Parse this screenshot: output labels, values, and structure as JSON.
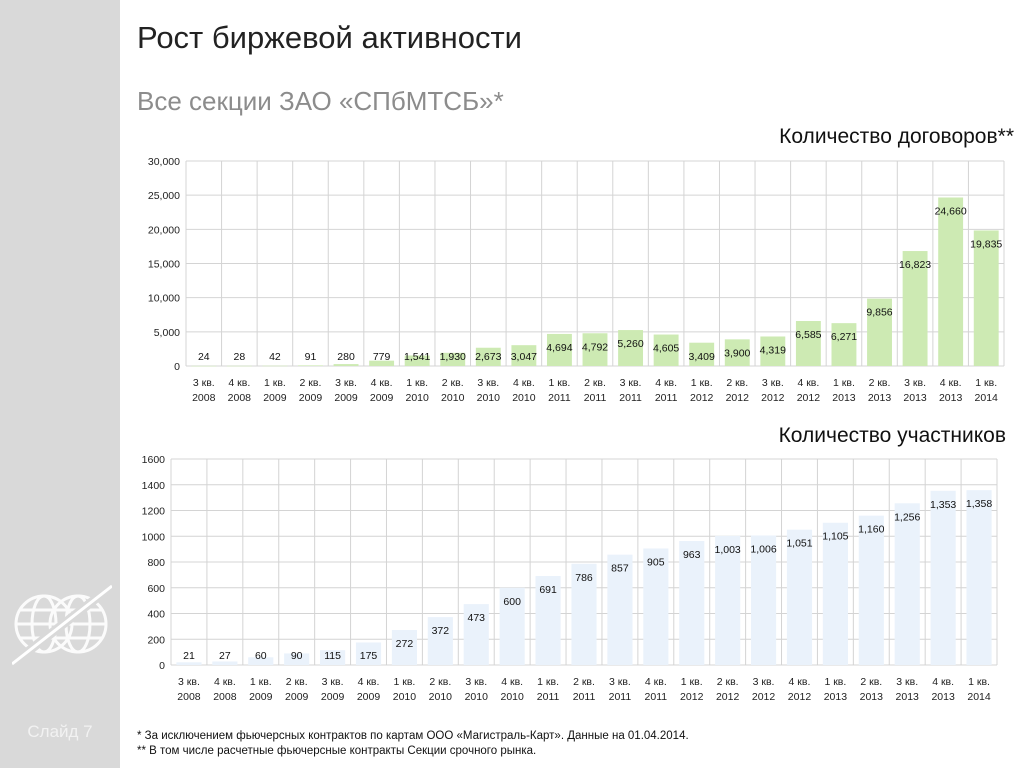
{
  "slide": {
    "title": "Рост биржевой активности",
    "subtitle": "Все секции ЗАО «СПбМТСБ»*",
    "slide_label": "Слайд 7"
  },
  "footnotes": {
    "note1": "* За исключением фьючерсных контрактов по картам ООО «Магистраль-Карт».  Данные на 01.04.2014.",
    "note2": "** В том числе расчетные фьючерсные контракты Секции срочного рынка."
  },
  "colors": {
    "contracts_bar": "#cdeab3",
    "participants_bar": "#eaf2fb",
    "grid": "#d4d4d4",
    "sidebar": "#d9d9d9"
  },
  "chart_data": [
    {
      "type": "bar",
      "title": "Количество договоров**",
      "categories": [
        "3 кв. 2008",
        "4 кв. 2008",
        "1 кв. 2009",
        "2 кв. 2009",
        "3 кв. 2009",
        "4 кв. 2009",
        "1 кв. 2010",
        "2 кв. 2010",
        "3 кв. 2010",
        "4 кв. 2010",
        "1 кв. 2011",
        "2 кв. 2011",
        "3 кв. 2011",
        "4 кв. 2011",
        "1 кв. 2012",
        "2 кв. 2012",
        "3 кв. 2012",
        "4 кв. 2012",
        "1 кв. 2013",
        "2 кв. 2013",
        "3 кв. 2013",
        "4 кв. 2013",
        "1 кв. 2014"
      ],
      "values": [
        24,
        28,
        42,
        91,
        280,
        779,
        1541,
        1930,
        2673,
        3047,
        4694,
        4792,
        5260,
        4605,
        3409,
        3900,
        4319,
        6585,
        6271,
        9856,
        16823,
        24660,
        19835
      ],
      "data_labels": [
        "24",
        "28",
        "42",
        "91",
        "280",
        "779",
        "1,541",
        "1,930",
        "2,673",
        "3,047",
        "4,694",
        "4,792",
        "5,260",
        "4,605",
        "3,409",
        "3,900",
        "4,319",
        "6,585",
        "6,271",
        "9,856",
        "16,823",
        "24,660",
        "19,835"
      ],
      "y_ticks": [
        "0",
        "5,000",
        "10,000",
        "15,000",
        "20,000",
        "25,000",
        "30,000"
      ],
      "ylim": [
        0,
        30000
      ],
      "xlabel": "",
      "ylabel": "",
      "grid": true,
      "legend": "none"
    },
    {
      "type": "bar",
      "title": "Количество участников",
      "categories": [
        "3 кв. 2008",
        "4 кв. 2008",
        "1 кв. 2009",
        "2 кв. 2009",
        "3 кв. 2009",
        "4 кв. 2009",
        "1 кв. 2010",
        "2 кв. 2010",
        "3 кв. 2010",
        "4 кв. 2010",
        "1 кв. 2011",
        "2 кв. 2011",
        "3 кв. 2011",
        "4 кв. 2011",
        "1 кв. 2012",
        "2 кв. 2012",
        "3 кв. 2012",
        "4 кв. 2012",
        "1 кв. 2013",
        "2 кв. 2013",
        "3 кв. 2013",
        "4 кв. 2013",
        "1 кв. 2014"
      ],
      "values": [
        21,
        27,
        60,
        90,
        115,
        175,
        272,
        372,
        473,
        600,
        691,
        786,
        857,
        905,
        963,
        1003,
        1006,
        1051,
        1105,
        1160,
        1256,
        1353,
        1358
      ],
      "data_labels": [
        "21",
        "27",
        "60",
        "90",
        "115",
        "175",
        "272",
        "372",
        "473",
        "600",
        "691",
        "786",
        "857",
        "905",
        "963",
        "1,003",
        "1,006",
        "1,051",
        "1,105",
        "1,160",
        "1,256",
        "1,353",
        "1,358"
      ],
      "y_ticks": [
        "0",
        "200",
        "400",
        "600",
        "800",
        "1000",
        "1200",
        "1400",
        "1600"
      ],
      "ylim": [
        0,
        1600
      ],
      "xlabel": "",
      "ylabel": "",
      "grid": true,
      "legend": "none"
    }
  ]
}
